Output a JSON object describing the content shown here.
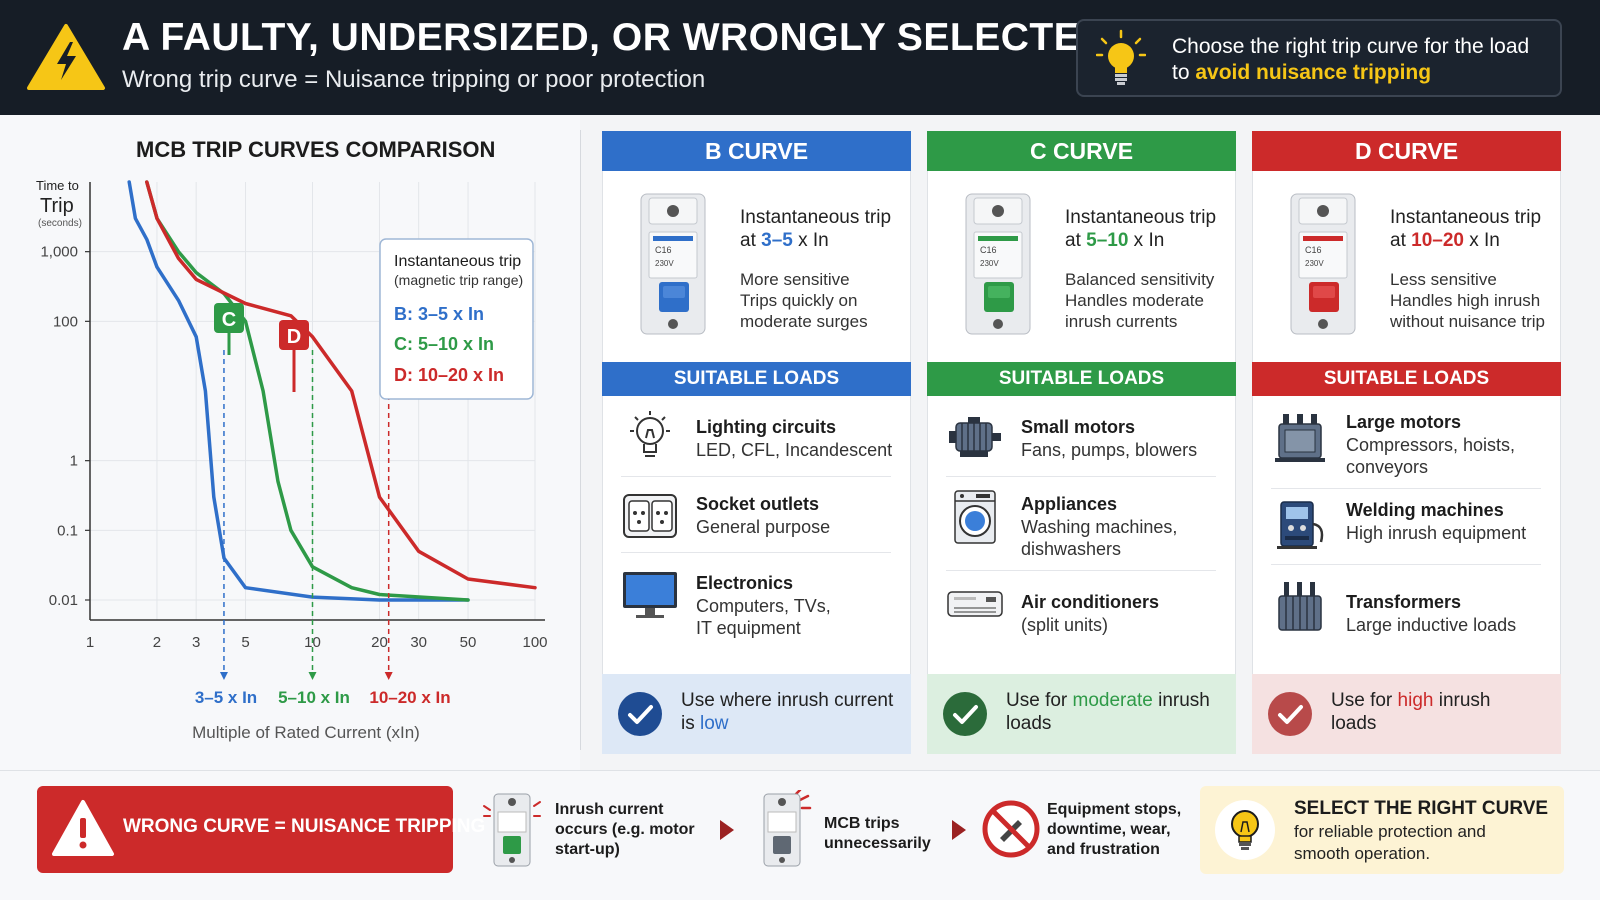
{
  "header": {
    "title": "A FAULTY, UNDERSIZED, OR WRONGLY SELECTED MCB",
    "subtitle": "Wrong trip curve = Nuisance tripping or poor protection",
    "tip_line1": "Choose the right trip curve for the load",
    "tip_line2_prefix": "to ",
    "tip_line2_highlight": "avoid nuisance tripping",
    "icons": [
      "warning-icon",
      "lightbulb-icon"
    ]
  },
  "colors": {
    "b": "#2f6fc9",
    "c": "#2e9a47",
    "d": "#cc2a2a",
    "header_bg": "#161d26",
    "highlight": "#f6c616"
  },
  "chart": {
    "title": "MCB TRIP CURVES COMPARISON",
    "y_label_1": "Time to",
    "y_label_2": "Trip",
    "y_label_3": "(seconds)",
    "x_label": "Multiple of Rated Current (xIn)",
    "x_ticks": [
      "1",
      "2",
      "3",
      "5",
      "10",
      "20",
      "30",
      "50",
      "100"
    ],
    "y_ticks": [
      "1,000",
      "100",
      "1",
      "0.1",
      "0.01"
    ],
    "badge_c": "C",
    "badge_d": "D",
    "legend_title": "Instantaneous trip",
    "legend_sub": "(magnetic trip range)",
    "legend_b": "B: 3–5 x In",
    "legend_c": "C: 5–10 x In",
    "legend_d": "D: 10–20 x In",
    "range_b": "3–5 x In",
    "range_c": "5–10 x In",
    "range_d": "10–20 x In"
  },
  "chart_data": {
    "type": "line",
    "title": "MCB TRIP CURVES COMPARISON",
    "xlabel": "Multiple of Rated Current (xIn)",
    "ylabel": "Time to Trip (seconds)",
    "x_scale": "log",
    "y_scale": "log",
    "xlim": [
      1,
      100
    ],
    "ylim": [
      0.01,
      10000
    ],
    "series": [
      {
        "name": "B",
        "color": "#2f6fc9",
        "x": [
          1.5,
          1.6,
          1.8,
          2.0,
          2.5,
          3.0,
          3.3,
          3.6,
          4,
          5,
          10,
          20,
          50
        ],
        "y": [
          10000,
          3000,
          1500,
          600,
          200,
          60,
          10,
          0.3,
          0.04,
          0.015,
          0.011,
          0.01,
          0.01
        ]
      },
      {
        "name": "C",
        "color": "#2e9a47",
        "x": [
          1.8,
          2.0,
          2.5,
          3,
          4,
          5,
          6,
          7,
          8,
          10,
          15,
          20,
          50
        ],
        "y": [
          10000,
          3000,
          1000,
          500,
          250,
          100,
          10,
          0.5,
          0.1,
          0.03,
          0.015,
          0.012,
          0.01
        ]
      },
      {
        "name": "D",
        "color": "#cc2a2a",
        "x": [
          1.8,
          2.0,
          2.5,
          3,
          5,
          8,
          10,
          15,
          20,
          30,
          50,
          100
        ],
        "y": [
          10000,
          3000,
          800,
          400,
          180,
          120,
          60,
          10,
          0.3,
          0.05,
          0.02,
          0.015
        ]
      }
    ]
  },
  "columns": [
    {
      "key": "b",
      "header": "B CURVE",
      "line1": "Instantaneous trip",
      "line2_prefix": "at ",
      "line2_value": "3–5",
      "line2_suffix": " x In",
      "desc": [
        "More sensitive",
        "Trips quickly on",
        "moderate surges"
      ],
      "loads_header": "SUITABLE LOADS",
      "loads": [
        {
          "icon": "lightbulb-icon",
          "title": "Lighting circuits",
          "sub": [
            "LED, CFL, Incandescent"
          ]
        },
        {
          "icon": "socket-outlet-icon",
          "title": "Socket outlets",
          "sub": [
            "General purpose"
          ]
        },
        {
          "icon": "computer-monitor-icon",
          "title": "Electronics",
          "sub": [
            "Computers, TVs,",
            "IT equipment"
          ]
        }
      ],
      "use_prefix": "Use where inrush current",
      "use_line2_prefix": "is ",
      "use_word": "low",
      "use_suffix": ""
    },
    {
      "key": "c",
      "header": "C CURVE",
      "line1": "Instantaneous trip",
      "line2_prefix": "at ",
      "line2_value": "5–10",
      "line2_suffix": " x In",
      "desc": [
        "Balanced sensitivity",
        "Handles moderate",
        "inrush currents"
      ],
      "loads_header": "SUITABLE LOADS",
      "loads": [
        {
          "icon": "motor-icon",
          "title": "Small motors",
          "sub": [
            "Fans, pumps, blowers"
          ]
        },
        {
          "icon": "washing-machine-icon",
          "title": "Appliances",
          "sub": [
            "Washing machines,",
            "dishwashers"
          ]
        },
        {
          "icon": "air-conditioner-icon",
          "title": "Air conditioners",
          "sub": [
            "(split units)"
          ]
        }
      ],
      "use_prefix": "Use for ",
      "use_word": "moderate",
      "use_suffix": " inrush",
      "use_line2": "loads"
    },
    {
      "key": "d",
      "header": "D CURVE",
      "line1": "Instantaneous trip",
      "line2_prefix": "at ",
      "line2_value": "10–20",
      "line2_suffix": " x In",
      "desc": [
        "Less sensitive",
        "Handles high inrush",
        "without nuisance trip"
      ],
      "loads_header": "SUITABLE LOADS",
      "loads": [
        {
          "icon": "large-motor-icon",
          "title": "Large motors",
          "sub": [
            "Compressors, hoists,",
            "conveyors"
          ]
        },
        {
          "icon": "welding-machine-icon",
          "title": "Welding machines",
          "sub": [
            "High inrush equipment"
          ]
        },
        {
          "icon": "transformer-icon",
          "title": "Transformers",
          "sub": [
            "Large inductive loads"
          ]
        }
      ],
      "use_prefix": "Use for ",
      "use_word": "high",
      "use_suffix": " inrush",
      "use_line2": "loads"
    }
  ],
  "bottom": {
    "wrong": "WRONG CURVE = NUISANCE TRIPPING",
    "step1": [
      "Inrush current",
      "occurs (e.g. motor",
      "start-up)"
    ],
    "step2": [
      "MCB trips",
      "unnecessarily"
    ],
    "step3": [
      "Equipment stops,",
      "downtime, wear,",
      "and frustration"
    ],
    "select_title": "SELECT THE RIGHT CURVE",
    "select_1": "for reliable protection and",
    "select_2": "smooth operation."
  }
}
